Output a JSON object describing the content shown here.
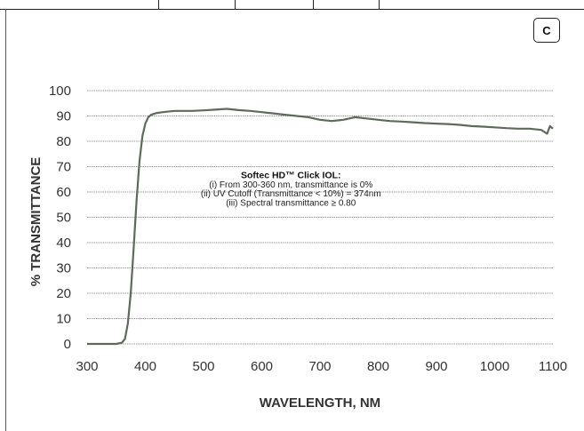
{
  "panel_label": "C",
  "chart_data": {
    "type": "line",
    "title": "",
    "xlabel": "WAVELENGTH, NM",
    "ylabel": "% TRANSMITTANCE",
    "xlim": [
      300,
      1100
    ],
    "ylim": [
      0,
      100
    ],
    "x_ticks": [
      300,
      400,
      500,
      600,
      700,
      800,
      900,
      1000,
      1100
    ],
    "y_ticks": [
      0,
      10,
      20,
      30,
      40,
      50,
      60,
      70,
      80,
      90,
      100
    ],
    "grid": true,
    "legend": "none",
    "line_color": "#5e6a5c",
    "annotation": {
      "title": "Softec HD™ Click IOL:",
      "lines": [
        "(i) From 300-360 nm, transmittance is 0%",
        "(ii) UV Cutoff (Transmittance < 10%) = 374nm",
        "(iii) Spectral transmittance ≥ 0.80"
      ]
    },
    "series": [
      {
        "x": [
          300,
          350,
          360,
          365,
          370,
          375,
          380,
          385,
          390,
          395,
          400,
          405,
          410,
          420,
          430,
          450,
          480,
          500,
          520,
          540,
          560,
          580,
          600,
          620,
          640,
          660,
          680,
          700,
          720,
          740,
          760,
          780,
          800,
          820,
          840,
          860,
          880,
          900,
          920,
          940,
          960,
          980,
          1000,
          1020,
          1040,
          1060,
          1080,
          1090,
          1095,
          1100
        ],
        "y": [
          0,
          0,
          0.5,
          2,
          8,
          20,
          38,
          57,
          72,
          82,
          87,
          89.5,
          90.5,
          91.2,
          91.5,
          92,
          92,
          92.2,
          92.5,
          92.8,
          92.3,
          92,
          91.5,
          91,
          90.5,
          90,
          89.5,
          88.5,
          88,
          88.5,
          89.5,
          89,
          88.5,
          88,
          87.8,
          87.5,
          87.2,
          87,
          86.8,
          86.5,
          86,
          85.8,
          85.5,
          85.2,
          85,
          85,
          84.5,
          83,
          86,
          85
        ]
      }
    ]
  }
}
